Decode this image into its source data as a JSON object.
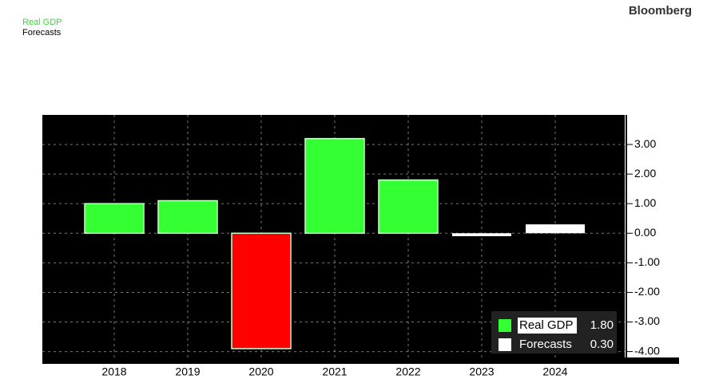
{
  "chart_data": {
    "type": "bar",
    "brand": "Bloomberg",
    "categories": [
      "2018",
      "2019",
      "2020",
      "2021",
      "2022",
      "2023",
      "2024"
    ],
    "series": [
      {
        "name": "Real GDP",
        "color": "#33ff33",
        "negative_color": "#ff0000",
        "values": [
          1.0,
          1.1,
          -3.9,
          3.2,
          1.8,
          null,
          null
        ],
        "legend_value": {
          "value": 1.8,
          "label": "1.80"
        }
      },
      {
        "name": "Forecasts",
        "color": "#ffffff",
        "values": [
          null,
          null,
          null,
          null,
          null,
          -0.1,
          0.3
        ],
        "legend_value": {
          "value": 0.3,
          "label": "0.30"
        }
      }
    ],
    "ylim": [
      -4.2,
      4.0
    ],
    "yticks": [
      {
        "value": 3,
        "label": "3.00"
      },
      {
        "value": 2,
        "label": "2.00"
      },
      {
        "value": 1,
        "label": "1.00"
      },
      {
        "value": 0,
        "label": "0.00"
      },
      {
        "value": -1,
        "label": "-1.00"
      },
      {
        "value": -2,
        "label": "-2.00"
      },
      {
        "value": -3,
        "label": "-3.00"
      },
      {
        "value": -4,
        "label": "-4.00"
      }
    ],
    "grid": true
  }
}
